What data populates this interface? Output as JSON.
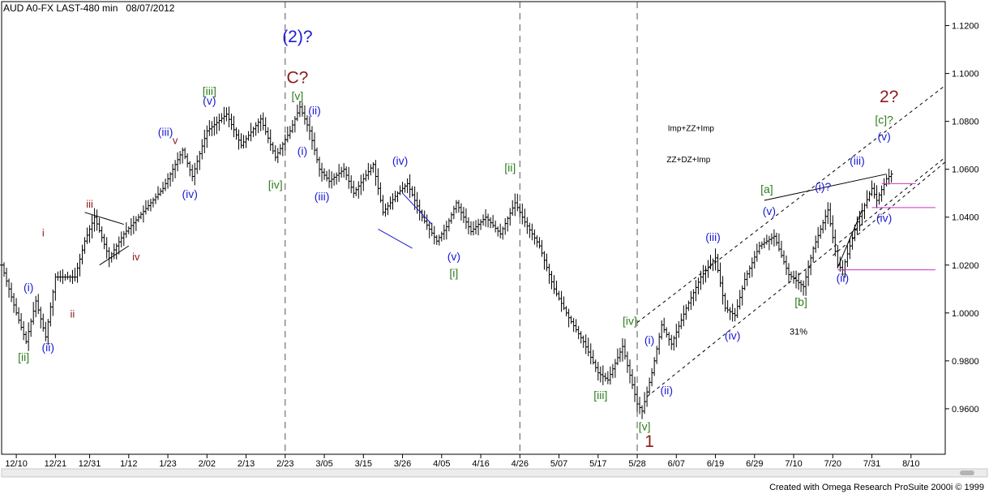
{
  "header": {
    "symbol": "AUD A0-FX",
    "interval": "LAST-480 min",
    "date": "08/07/2012"
  },
  "footer": {
    "credit": "Created with Omega Research ProSuite 2000i © 1999"
  },
  "colors": {
    "bars": "#000000",
    "blue": "#1a1ad6",
    "green": "#2e7d1e",
    "maroon": "#8b1a1a",
    "magenta": "#cc33cc",
    "grid": "#555555"
  },
  "chart_data": {
    "type": "ohlc",
    "title": "",
    "xlabel": "",
    "ylabel": "",
    "ylim": [
      0.941,
      1.13
    ],
    "yticks": [
      "1.1200",
      "1.1000",
      "1.0800",
      "1.0600",
      "1.0400",
      "1.0200",
      "1.0000",
      "0.9800",
      "0.9600"
    ],
    "ytick_values": [
      1.12,
      1.1,
      1.08,
      1.06,
      1.04,
      1.02,
      1.0,
      0.98,
      0.96
    ],
    "x_range": [
      0,
      193
    ],
    "xticks": [
      {
        "label": "12/10",
        "i": 3
      },
      {
        "label": "12/21",
        "i": 11
      },
      {
        "label": "12/31",
        "i": 18
      },
      {
        "label": "1/12",
        "i": 26
      },
      {
        "label": "1/23",
        "i": 34
      },
      {
        "label": "2/02",
        "i": 42
      },
      {
        "label": "2/13",
        "i": 50
      },
      {
        "label": "2/23",
        "i": 58
      },
      {
        "label": "3/05",
        "i": 66
      },
      {
        "label": "3/15",
        "i": 74
      },
      {
        "label": "3/26",
        "i": 82
      },
      {
        "label": "4/05",
        "i": 90
      },
      {
        "label": "4/16",
        "i": 98
      },
      {
        "label": "4/26",
        "i": 106
      },
      {
        "label": "5/07",
        "i": 114
      },
      {
        "label": "5/17",
        "i": 122
      },
      {
        "label": "5/28",
        "i": 130
      },
      {
        "label": "6/07",
        "i": 138
      },
      {
        "label": "6/19",
        "i": 146
      },
      {
        "label": "6/29",
        "i": 154
      },
      {
        "label": "7/10",
        "i": 162
      },
      {
        "label": "7/20",
        "i": 170
      },
      {
        "label": "7/31",
        "i": 178
      },
      {
        "label": "8/10",
        "i": 186
      }
    ],
    "price_path": [
      [
        0,
        1.02
      ],
      [
        3,
        1.0
      ],
      [
        5,
        0.988
      ],
      [
        7,
        1.005
      ],
      [
        9,
        0.99
      ],
      [
        11,
        1.015
      ],
      [
        15,
        1.015
      ],
      [
        17,
        1.03
      ],
      [
        19,
        1.04
      ],
      [
        22,
        1.023
      ],
      [
        25,
        1.033
      ],
      [
        28,
        1.04
      ],
      [
        33,
        1.052
      ],
      [
        37,
        1.068
      ],
      [
        39,
        1.057
      ],
      [
        42,
        1.076
      ],
      [
        46,
        1.083
      ],
      [
        49,
        1.07
      ],
      [
        53,
        1.081
      ],
      [
        56,
        1.065
      ],
      [
        59,
        1.076
      ],
      [
        61,
        1.086
      ],
      [
        63,
        1.076
      ],
      [
        65,
        1.06
      ],
      [
        67,
        1.055
      ],
      [
        70,
        1.06
      ],
      [
        72,
        1.05
      ],
      [
        76,
        1.062
      ],
      [
        78,
        1.042
      ],
      [
        81,
        1.05
      ],
      [
        83,
        1.054
      ],
      [
        86,
        1.04
      ],
      [
        89,
        1.03
      ],
      [
        91,
        1.036
      ],
      [
        93,
        1.046
      ],
      [
        96,
        1.034
      ],
      [
        99,
        1.04
      ],
      [
        102,
        1.033
      ],
      [
        105,
        1.046
      ],
      [
        107,
        1.038
      ],
      [
        110,
        1.028
      ],
      [
        113,
        1.01
      ],
      [
        116,
        0.998
      ],
      [
        119,
        0.988
      ],
      [
        122,
        0.975
      ],
      [
        124,
        0.972
      ],
      [
        127,
        0.986
      ],
      [
        130,
        0.962
      ],
      [
        131,
        0.959
      ],
      [
        133,
        0.975
      ],
      [
        135,
        0.995
      ],
      [
        137,
        0.987
      ],
      [
        140,
        1.002
      ],
      [
        143,
        1.015
      ],
      [
        146,
        1.023
      ],
      [
        148,
        1.002
      ],
      [
        150,
        0.999
      ],
      [
        152,
        1.014
      ],
      [
        155,
        1.028
      ],
      [
        158,
        1.032
      ],
      [
        161,
        1.016
      ],
      [
        164,
        1.011
      ],
      [
        166,
        1.027
      ],
      [
        169,
        1.043
      ],
      [
        171,
        1.02
      ],
      [
        172,
        1.018
      ],
      [
        175,
        1.038
      ],
      [
        178,
        1.052
      ],
      [
        179,
        1.047
      ],
      [
        181,
        1.056
      ],
      [
        182,
        1.058
      ]
    ],
    "vertical_dashed_lines": [
      58,
      106,
      130
    ],
    "lines": [
      {
        "name": "channel-upper",
        "style": "dash",
        "color": "#000000",
        "from": [
          130,
          0.996
        ],
        "to": [
          193,
          1.095
        ]
      },
      {
        "name": "channel-lower",
        "style": "dash",
        "color": "#000000",
        "from": [
          132,
          0.965
        ],
        "to": [
          193,
          1.065
        ]
      },
      {
        "name": "channel-middle",
        "style": "dash",
        "color": "#000000",
        "from": [
          170,
          1.024
        ],
        "to": [
          193,
          1.063
        ]
      },
      {
        "name": "triangle-jan-upper",
        "style": "solid",
        "color": "#000000",
        "from": [
          17,
          1.042
        ],
        "to": [
          25,
          1.037
        ]
      },
      {
        "name": "triangle-jan-lower",
        "style": "solid",
        "color": "#000000",
        "from": [
          20,
          1.02
        ],
        "to": [
          26,
          1.028
        ]
      },
      {
        "name": "wedge-mar-upper",
        "style": "solid",
        "color": "#1a1ad6",
        "from": [
          82,
          1.05
        ],
        "to": [
          88,
          1.037
        ]
      },
      {
        "name": "wedge-mar-lower",
        "style": "solid",
        "color": "#1a1ad6",
        "from": [
          77,
          1.035
        ],
        "to": [
          84,
          1.027
        ]
      },
      {
        "name": "triangle-jul-upper",
        "style": "solid",
        "color": "#000000",
        "from": [
          156,
          1.047
        ],
        "to": [
          181,
          1.058
        ]
      },
      {
        "name": "triangle-jul-lower",
        "style": "solid",
        "color": "#000000",
        "from": [
          171,
          1.019
        ],
        "to": [
          176,
          1.043
        ]
      },
      {
        "name": "level-1",
        "style": "solid",
        "color": "#cc33cc",
        "from": [
          180,
          1.054
        ],
        "to": [
          187,
          1.054
        ]
      },
      {
        "name": "level-2",
        "style": "solid",
        "color": "#cc33cc",
        "from": [
          178,
          1.044
        ],
        "to": [
          191,
          1.044
        ]
      },
      {
        "name": "level-3",
        "style": "solid",
        "color": "#cc33cc",
        "from": [
          171,
          1.018
        ],
        "to": [
          191,
          1.018
        ]
      }
    ],
    "annotations": [
      {
        "text": "(2)?",
        "i": 60.5,
        "y": 1.113,
        "color": "#1a1ad6",
        "size": 21
      },
      {
        "text": "C?",
        "i": 60.5,
        "y": 1.096,
        "color": "#8b1a1a",
        "size": 21
      },
      {
        "text": "[iii]",
        "i": 42.5,
        "y": 1.091,
        "color": "#2e7d1e",
        "size": 14
      },
      {
        "text": "(v)",
        "i": 42.5,
        "y": 1.087,
        "color": "#1a1ad6",
        "size": 14
      },
      {
        "text": "(iii)",
        "i": 33.5,
        "y": 1.074,
        "color": "#1a1ad6",
        "size": 14
      },
      {
        "text": "v",
        "i": 35.5,
        "y": 1.0705,
        "color": "#8b1a1a",
        "size": 13
      },
      {
        "text": "(iv)",
        "i": 38.5,
        "y": 1.048,
        "color": "#1a1ad6",
        "size": 14
      },
      {
        "text": "[v]",
        "i": 60.5,
        "y": 1.089,
        "color": "#2e7d1e",
        "size": 14
      },
      {
        "text": "(ii)",
        "i": 64,
        "y": 1.083,
        "color": "#1a1ad6",
        "size": 14
      },
      {
        "text": "(i)",
        "i": 61.5,
        "y": 1.066,
        "color": "#1a1ad6",
        "size": 14
      },
      {
        "text": "[iv]",
        "i": 56,
        "y": 1.052,
        "color": "#2e7d1e",
        "size": 14
      },
      {
        "text": "(iii)",
        "i": 65.5,
        "y": 1.047,
        "color": "#1a1ad6",
        "size": 14
      },
      {
        "text": "(iv)",
        "i": 81.5,
        "y": 1.062,
        "color": "#1a1ad6",
        "size": 14
      },
      {
        "text": "[ii]",
        "i": 104,
        "y": 1.059,
        "color": "#2e7d1e",
        "size": 14
      },
      {
        "text": "(v)",
        "i": 92.5,
        "y": 1.022,
        "color": "#1a1ad6",
        "size": 14
      },
      {
        "text": "[i]",
        "i": 92.5,
        "y": 1.015,
        "color": "#2e7d1e",
        "size": 14
      },
      {
        "text": "iii",
        "i": 18,
        "y": 1.044,
        "color": "#8b1a1a",
        "size": 13
      },
      {
        "text": "iv",
        "i": 27.5,
        "y": 1.022,
        "color": "#8b1a1a",
        "size": 13
      },
      {
        "text": "i",
        "i": 8.5,
        "y": 1.032,
        "color": "#8b1a1a",
        "size": 13
      },
      {
        "text": "(i)",
        "i": 5.5,
        "y": 1.009,
        "color": "#1a1ad6",
        "size": 14
      },
      {
        "text": "ii",
        "i": 14.5,
        "y": 0.998,
        "color": "#8b1a1a",
        "size": 13
      },
      {
        "text": "(ii)",
        "i": 9.5,
        "y": 0.984,
        "color": "#1a1ad6",
        "size": 14
      },
      {
        "text": "[ii]",
        "i": 4.5,
        "y": 0.98,
        "color": "#2e7d1e",
        "size": 14
      },
      {
        "text": "[iv]",
        "i": 128.5,
        "y": 0.995,
        "color": "#2e7d1e",
        "size": 14
      },
      {
        "text": "(i)",
        "i": 132.5,
        "y": 0.987,
        "color": "#1a1ad6",
        "size": 14
      },
      {
        "text": "[iii]",
        "i": 122.5,
        "y": 0.964,
        "color": "#2e7d1e",
        "size": 14
      },
      {
        "text": "(ii)",
        "i": 136,
        "y": 0.966,
        "color": "#1a1ad6",
        "size": 14
      },
      {
        "text": "[v]",
        "i": 131.5,
        "y": 0.951,
        "color": "#2e7d1e",
        "size": 14
      },
      {
        "text": "1",
        "i": 132.5,
        "y": 0.944,
        "color": "#8b1a1a",
        "size": 21
      },
      {
        "text": "(iii)",
        "i": 145.5,
        "y": 1.03,
        "color": "#1a1ad6",
        "size": 14
      },
      {
        "text": "(iv)",
        "i": 149.5,
        "y": 0.989,
        "color": "#1a1ad6",
        "size": 14
      },
      {
        "text": "(v)",
        "i": 157,
        "y": 1.041,
        "color": "#1a1ad6",
        "size": 14
      },
      {
        "text": "[a]",
        "i": 156.5,
        "y": 1.05,
        "color": "#2e7d1e",
        "size": 14
      },
      {
        "text": "[b]",
        "i": 163.5,
        "y": 1.003,
        "color": "#2e7d1e",
        "size": 14
      },
      {
        "text": "31%",
        "i": 163,
        "y": 0.991,
        "color": "#000000",
        "size": 11
      },
      {
        "text": "(i)?",
        "i": 168,
        "y": 1.051,
        "color": "#1a1ad6",
        "size": 14
      },
      {
        "text": "(ii)",
        "i": 172,
        "y": 1.013,
        "color": "#1a1ad6",
        "size": 14
      },
      {
        "text": "(iii)",
        "i": 175,
        "y": 1.062,
        "color": "#1a1ad6",
        "size": 14
      },
      {
        "text": "(iv)",
        "i": 180.5,
        "y": 1.038,
        "color": "#1a1ad6",
        "size": 14
      },
      {
        "text": "(v)",
        "i": 180.5,
        "y": 1.072,
        "color": "#1a1ad6",
        "size": 14
      },
      {
        "text": "[c]?",
        "i": 180.5,
        "y": 1.079,
        "color": "#2e7d1e",
        "size": 14
      },
      {
        "text": "2?",
        "i": 181.5,
        "y": 1.088,
        "color": "#8b1a1a",
        "size": 21
      },
      {
        "text": "Imp+ZZ+Imp",
        "i": 141,
        "y": 1.076,
        "color": "#000000",
        "size": 10
      },
      {
        "text": "ZZ+DZ+Imp",
        "i": 140.5,
        "y": 1.063,
        "color": "#000000",
        "size": 10
      }
    ]
  }
}
